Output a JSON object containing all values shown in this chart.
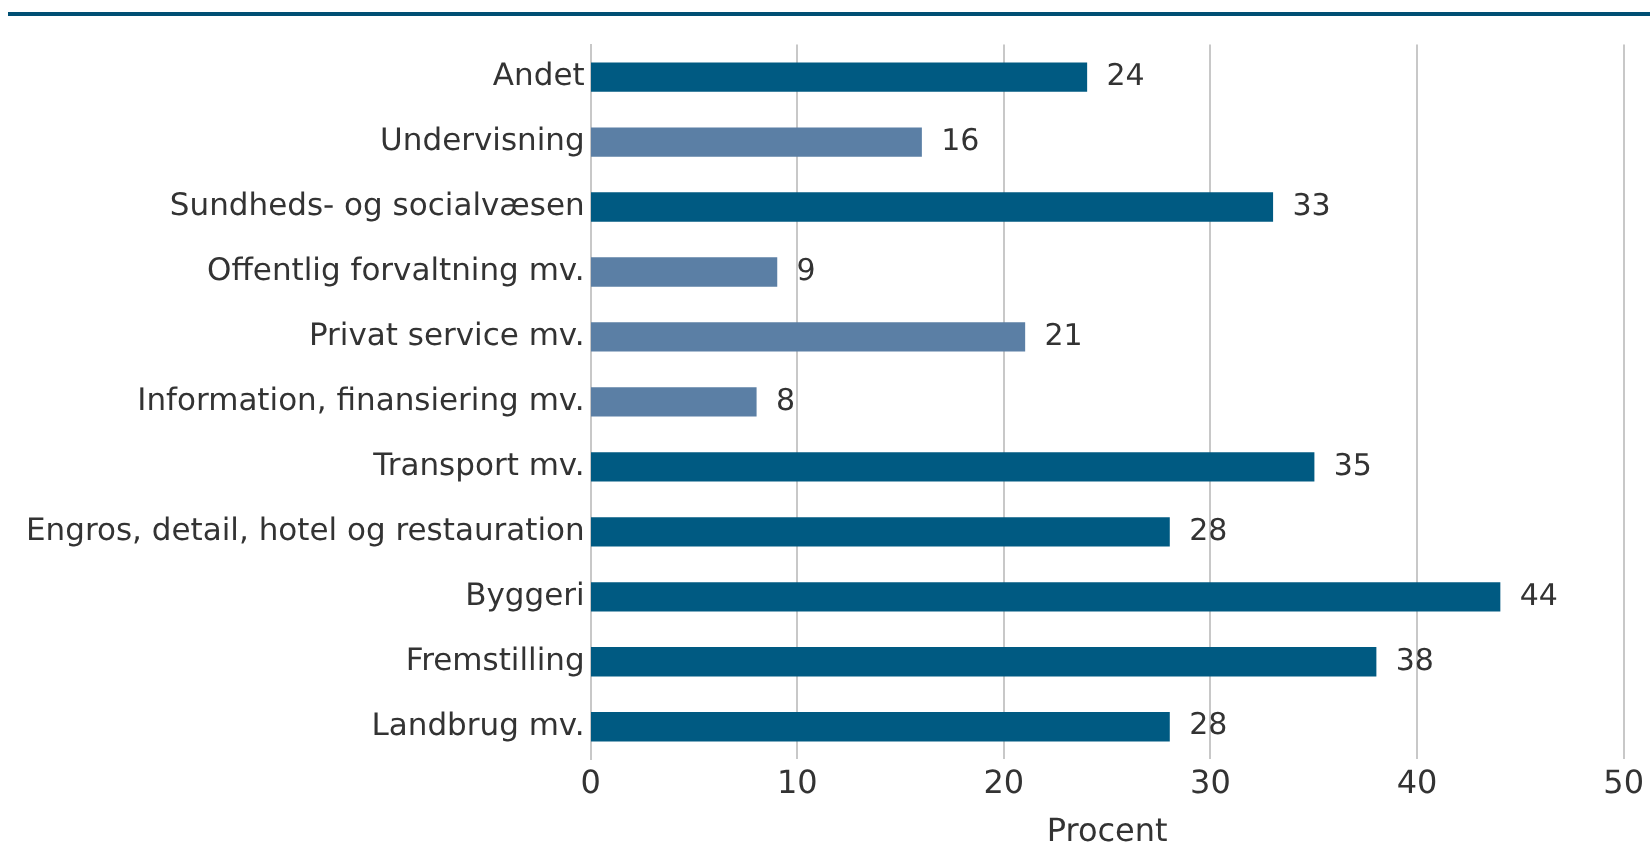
{
  "chart_data": {
    "type": "bar",
    "orientation": "horizontal",
    "xlabel": "Procent",
    "categories": [
      "Andet",
      "Undervisning",
      "Sundheds- og socialvæsen",
      "Offentlig forvaltning mv.",
      "Privat service mv.",
      "Information, finansiering mv.",
      "Transport mv.",
      "Engros, detail, hotel og restauration",
      "Byggeri",
      "Fremstilling",
      "Landbrug mv."
    ],
    "values": [
      24,
      16,
      33,
      9,
      21,
      8,
      35,
      28,
      44,
      38,
      28
    ],
    "colors": [
      "#005a82",
      "#5b7fa5",
      "#005a82",
      "#5b7fa5",
      "#5b7fa5",
      "#5b7fa5",
      "#005a82",
      "#005a82",
      "#005a82",
      "#005a82",
      "#005a82"
    ],
    "xlim": [
      0,
      50
    ],
    "xticks": [
      0,
      10,
      20,
      30,
      40,
      50
    ],
    "grid": "x",
    "legend": false,
    "data_labels": true
  }
}
